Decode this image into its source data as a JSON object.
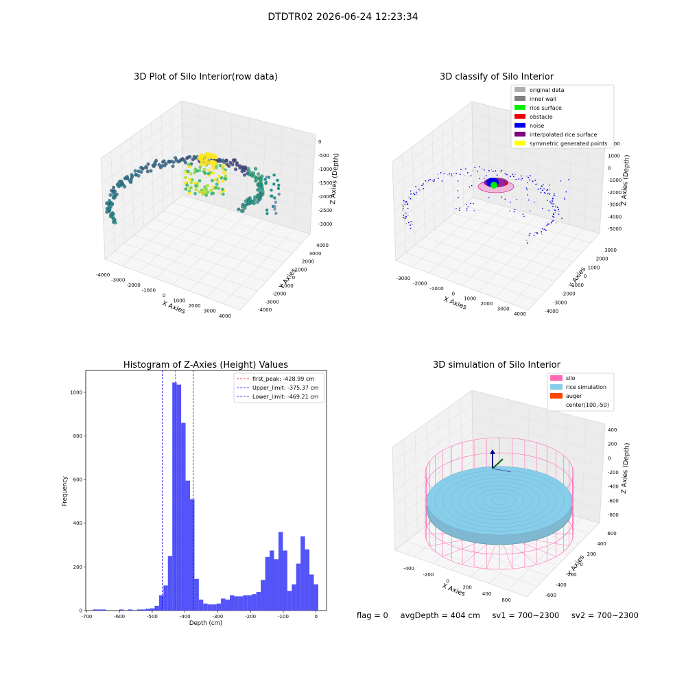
{
  "suptitle": "DTDTR02 2026-06-24 12:23:34",
  "footer": {
    "flag": "flag = 0",
    "avg_depth": "avgDepth = 404 cm",
    "sv1": "sv1 = 700~2300",
    "sv2": "sv2 = 700~2300"
  },
  "chart_data": [
    {
      "type": "scatter",
      "subtype": "3d",
      "title": "3D Plot of Silo Interior(row data)",
      "xlabel": "X Axies",
      "ylabel": "Y Axies",
      "zlabel": "Z Axies (Depth)",
      "xticks": [
        "-4000",
        "-3000",
        "-2000",
        "-1000",
        "0",
        "1000",
        "2000",
        "3000",
        "4000"
      ],
      "yticks": [
        "-4000",
        "-3000",
        "-2000",
        "-1000",
        "0",
        "1000",
        "2000",
        "3000",
        "4000"
      ],
      "zticks": [
        "-3000",
        "-2500",
        "-2000",
        "-1500",
        "-1000",
        "-500",
        "0"
      ],
      "colormap": "viridis",
      "grid": true
    },
    {
      "type": "scatter",
      "subtype": "3d",
      "title": "3D classify of Silo Interior",
      "xlabel": "X Axies",
      "ylabel": "Y Axies",
      "zlabel": "Z Axies (Depth)",
      "xticks": [
        "-3000",
        "-2000",
        "-1000",
        "0",
        "1000",
        "2000",
        "3000",
        "4000"
      ],
      "yticks": [
        "-4000",
        "-3000",
        "-2000",
        "-1000",
        "0",
        "1000",
        "2000",
        "3000"
      ],
      "zticks": [
        "-5000",
        "-4000",
        "-3000",
        "-2000",
        "-1000",
        "0",
        "1000",
        "2000"
      ],
      "legend": [
        {
          "label": "original data",
          "color": "#b0b0b0"
        },
        {
          "label": "inner wall",
          "color": "#808080"
        },
        {
          "label": "rice surface",
          "color": "#00ee00"
        },
        {
          "label": "obstacle",
          "color": "#ee0000"
        },
        {
          "label": "noise",
          "color": "#0000ee"
        },
        {
          "label": "interpolated rice surface",
          "color": "#800080"
        },
        {
          "label": "symmetric generated points",
          "color": "#ffff00"
        }
      ],
      "legend_position": "top-right",
      "grid": true
    },
    {
      "type": "bar",
      "subtype": "histogram",
      "title": "Histogram of Z-Axies (Height) Values",
      "xlabel": "Depth (cm)",
      "ylabel": "Frequency",
      "xlim": [
        -703,
        32
      ],
      "ylim": [
        0,
        1100
      ],
      "xticks": [
        -700,
        -600,
        -500,
        -400,
        -300,
        -200,
        -100,
        0
      ],
      "yticks": [
        0,
        200,
        400,
        600,
        800,
        1000
      ],
      "bar_color": "#4a4af8",
      "bin_width": 13.5,
      "bins": [
        {
          "x": -675,
          "count": 5
        },
        {
          "x": -661.5,
          "count": 5
        },
        {
          "x": -648,
          "count": 5
        },
        {
          "x": -634.5,
          "count": 0
        },
        {
          "x": -621,
          "count": 0
        },
        {
          "x": -607.5,
          "count": 0
        },
        {
          "x": -594,
          "count": 5
        },
        {
          "x": -580.5,
          "count": 0
        },
        {
          "x": -567,
          "count": 5
        },
        {
          "x": -553.5,
          "count": 0
        },
        {
          "x": -540,
          "count": 5
        },
        {
          "x": -526.5,
          "count": 5
        },
        {
          "x": -513,
          "count": 8
        },
        {
          "x": -499.5,
          "count": 10
        },
        {
          "x": -486,
          "count": 22
        },
        {
          "x": -472.5,
          "count": 70
        },
        {
          "x": -459,
          "count": 115
        },
        {
          "x": -445.5,
          "count": 250
        },
        {
          "x": -432,
          "count": 1045
        },
        {
          "x": -418.5,
          "count": 1035
        },
        {
          "x": -405,
          "count": 860
        },
        {
          "x": -391.5,
          "count": 595
        },
        {
          "x": -378,
          "count": 510
        },
        {
          "x": -364.5,
          "count": 145
        },
        {
          "x": -351,
          "count": 50
        },
        {
          "x": -337.5,
          "count": 32
        },
        {
          "x": -324,
          "count": 28
        },
        {
          "x": -310.5,
          "count": 28
        },
        {
          "x": -297,
          "count": 32
        },
        {
          "x": -283.5,
          "count": 55
        },
        {
          "x": -270,
          "count": 50
        },
        {
          "x": -256.5,
          "count": 70
        },
        {
          "x": -243,
          "count": 65
        },
        {
          "x": -229.5,
          "count": 65
        },
        {
          "x": -216,
          "count": 70
        },
        {
          "x": -202.5,
          "count": 70
        },
        {
          "x": -189,
          "count": 75
        },
        {
          "x": -175.5,
          "count": 85
        },
        {
          "x": -162,
          "count": 140
        },
        {
          "x": -148.5,
          "count": 245
        },
        {
          "x": -135,
          "count": 275
        },
        {
          "x": -121.5,
          "count": 235
        },
        {
          "x": -108,
          "count": 360
        },
        {
          "x": -94.5,
          "count": 275
        },
        {
          "x": -81,
          "count": 90
        },
        {
          "x": -67.5,
          "count": 120
        },
        {
          "x": -54,
          "count": 215
        },
        {
          "x": -40.5,
          "count": 340
        },
        {
          "x": -27,
          "count": 280
        },
        {
          "x": -13.5,
          "count": 165
        },
        {
          "x": 0,
          "count": 120
        }
      ],
      "vlines": [
        {
          "label": "first_peak: -428.99 cm",
          "x": -428.99,
          "color": "#ff0000"
        },
        {
          "label": "Upper_limit: -375.37 cm",
          "x": -375.37,
          "color": "#0000ff"
        },
        {
          "label": "Lower_limit: -469.21 cm",
          "x": -469.21,
          "color": "#0000ff"
        }
      ],
      "legend_position": "top-right"
    },
    {
      "type": "surface",
      "subtype": "3d",
      "title": "3D simulation of Silo Interior",
      "xlabel": "X Axies",
      "ylabel": "Y Axies",
      "zlabel": "Z Axies (Depth)",
      "xticks": [
        "-400",
        "-200",
        "0",
        "200",
        "400",
        "600"
      ],
      "yticks": [
        "-600",
        "-400",
        "-200",
        "0",
        "200",
        "400",
        "600"
      ],
      "zticks": [
        "-800",
        "-600",
        "-400",
        "-200",
        "0",
        "200",
        "400"
      ],
      "legend": [
        {
          "label": "silo",
          "color": "#ff69b4"
        },
        {
          "label": "rice simulation",
          "color": "#87ceeb"
        },
        {
          "label": "auger",
          "color": "#ff4500"
        },
        {
          "label": "center(100,-50)",
          "color": ""
        }
      ],
      "legend_position": "top-right",
      "grid": true
    }
  ]
}
